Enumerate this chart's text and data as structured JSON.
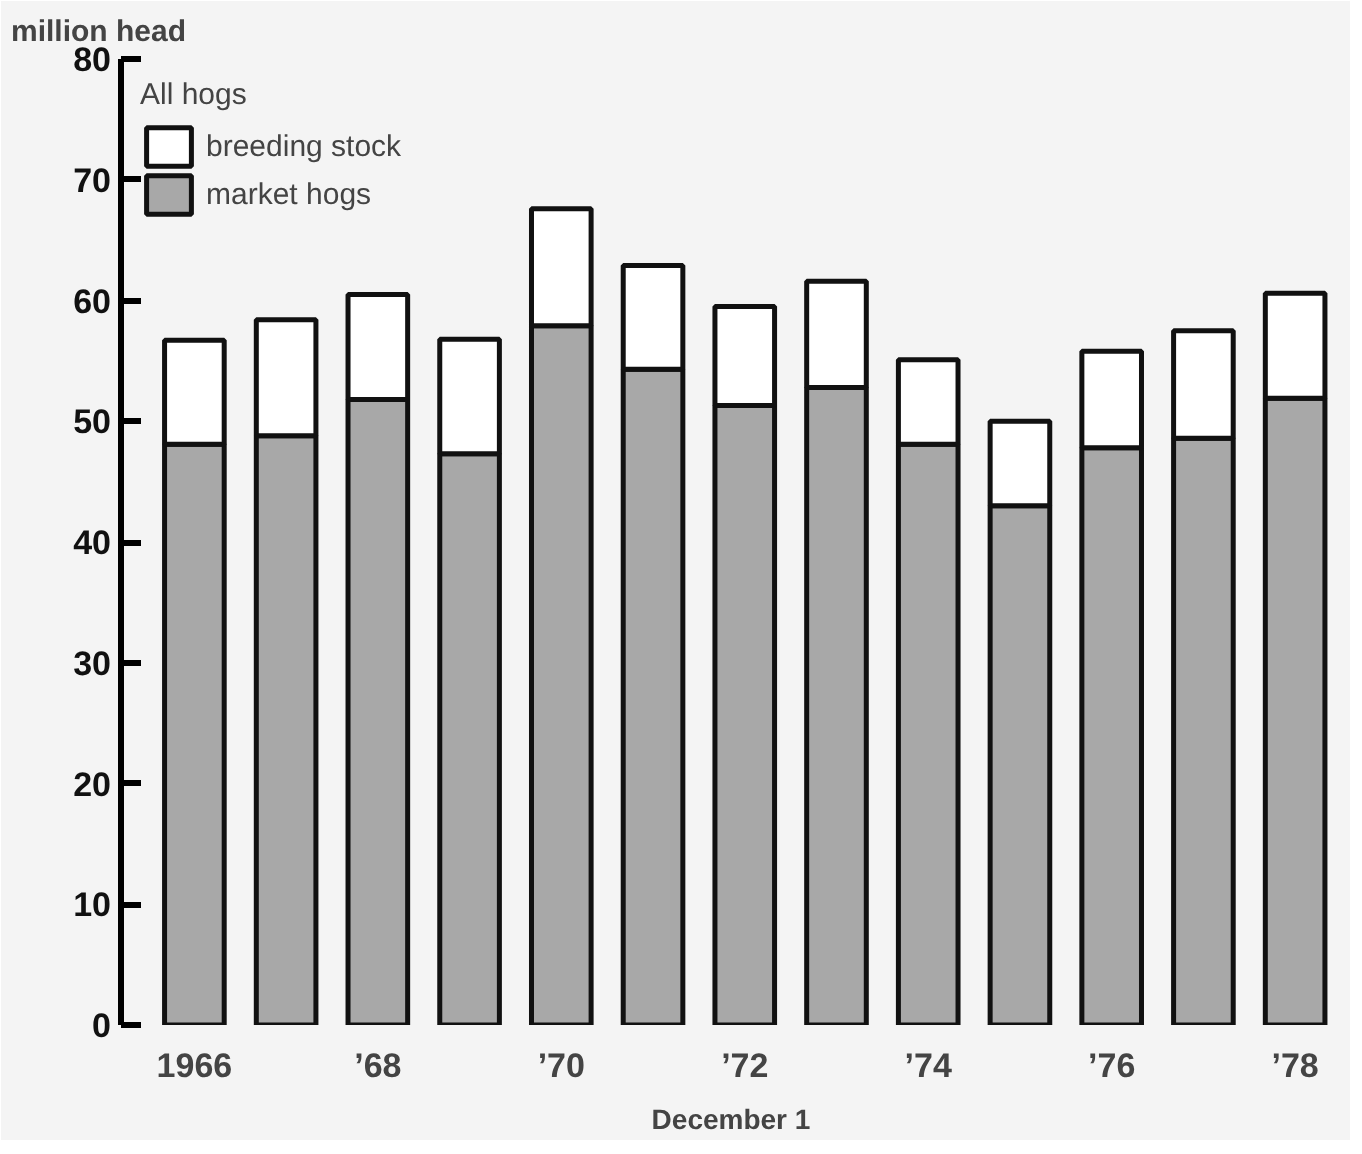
{
  "chart_data": {
    "type": "bar",
    "stacked": true,
    "ylabel": "million head",
    "xlabel": "December 1",
    "legend_title": "All hogs",
    "legend": "top left",
    "grid": false,
    "categories": [
      "1966",
      null,
      "’68",
      null,
      "’70",
      null,
      "’72",
      null,
      "’74",
      null,
      "’76",
      null,
      "’78"
    ],
    "series": [
      {
        "name": "market hogs",
        "color": "#a8a8a8",
        "values": [
          48.1,
          48.8,
          51.8,
          47.3,
          57.9,
          54.3,
          51.3,
          52.8,
          48.1,
          43.0,
          47.8,
          48.6,
          51.9
        ]
      },
      {
        "name": "breeding stock",
        "color": "#ffffff",
        "values": [
          8.6,
          9.6,
          8.7,
          9.5,
          9.7,
          8.6,
          8.2,
          8.8,
          7.0,
          7.0,
          8.0,
          8.9,
          8.7
        ]
      }
    ],
    "ylim": [
      0,
      80
    ],
    "yticks": [
      0,
      10,
      20,
      30,
      40,
      50,
      60,
      70,
      80
    ]
  }
}
